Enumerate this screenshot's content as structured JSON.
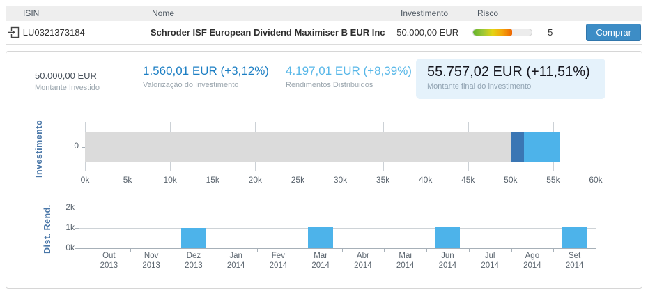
{
  "table": {
    "columns": [
      "ISIN",
      "Nome",
      "Investimento",
      "Risco"
    ],
    "row": {
      "isin": "LU0321373184",
      "name": "Schroder ISF European Dividend Maximiser B EUR Inc",
      "investment": "50.000,00 EUR",
      "risk_value": "5",
      "risk_fill_pct": 66,
      "risk_gradient": [
        "#64b32a",
        "#9cc737",
        "#e4d414",
        "#f4a50a",
        "#ee6502"
      ],
      "buy_label": "Comprar"
    }
  },
  "summary": {
    "invested": {
      "value": "50.000,00 EUR",
      "label": "Montante Investido"
    },
    "valuation": {
      "value": "1.560,01 EUR (+3,12%)",
      "label": "Valorização do Investimento",
      "color": "#1d7fc4"
    },
    "distributed": {
      "value": "4.197,01 EUR (+8,39%)",
      "label": "Rendimentos Distribuidos",
      "color": "#58b7e8"
    },
    "final": {
      "value": "55.757,02 EUR (+11,51%)",
      "label": "Montante final do investimento",
      "bg": "#e5f2fb"
    }
  },
  "chart_data": [
    {
      "type": "bar",
      "orientation": "horizontal",
      "ylabel": "Investimento",
      "y_tick_label": "0",
      "xlim": [
        0,
        60000
      ],
      "x_ticks": [
        "0k",
        "5k",
        "10k",
        "15k",
        "20k",
        "25k",
        "30k",
        "35k",
        "40k",
        "45k",
        "50k",
        "55k",
        "60k"
      ],
      "grid": "vertical",
      "segments": [
        {
          "name": "Montante Investido",
          "value": 50000,
          "color": "#dbdbdb"
        },
        {
          "name": "Valorização do Investimento",
          "value": 1560.01,
          "color": "#3a76b4"
        },
        {
          "name": "Rendimentos Distribuídos",
          "value": 4197.01,
          "color": "#4db3ea"
        }
      ]
    },
    {
      "type": "bar",
      "ylabel": "Dist. Rend.",
      "ylim": [
        0,
        2000
      ],
      "y_ticks": [
        "2k",
        "1k",
        "0k"
      ],
      "grid": "horizontal",
      "bar_color": "#4db3ea",
      "categories": [
        {
          "m": "Out",
          "y": "2013"
        },
        {
          "m": "Nov",
          "y": "2013"
        },
        {
          "m": "Dez",
          "y": "2013"
        },
        {
          "m": "Jan",
          "y": "2014"
        },
        {
          "m": "Fev",
          "y": "2014"
        },
        {
          "m": "Mar",
          "y": "2014"
        },
        {
          "m": "Abr",
          "y": "2014"
        },
        {
          "m": "Mai",
          "y": "2014"
        },
        {
          "m": "Jun",
          "y": "2014"
        },
        {
          "m": "Jul",
          "y": "2014"
        },
        {
          "m": "Ago",
          "y": "2014"
        },
        {
          "m": "Set",
          "y": "2014"
        }
      ],
      "values": [
        0,
        0,
        1010,
        0,
        0,
        1050,
        0,
        0,
        1060,
        0,
        0,
        1077
      ]
    }
  ]
}
